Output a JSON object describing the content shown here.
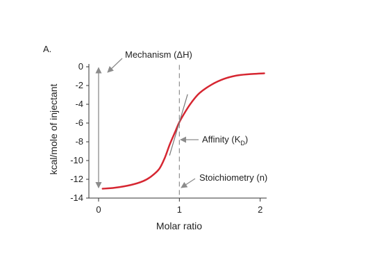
{
  "chart_data": {
    "type": "line",
    "panel_label": "A.",
    "title": "",
    "xlabel": "Molar ratio",
    "ylabel": "kcal/mole of injectant",
    "xlim": [
      -0.12,
      2.08
    ],
    "ylim": [
      -14,
      0.3
    ],
    "x_ticks": [
      0,
      1,
      2
    ],
    "y_ticks": [
      0,
      -2,
      -4,
      -6,
      -8,
      -10,
      -12,
      -14
    ],
    "grid": false,
    "legend": "none",
    "line_color": "#d62631",
    "annotation_color": "#8c8c8c",
    "series": [
      {
        "x": [
          0.05,
          0.2,
          0.4,
          0.55,
          0.65,
          0.75,
          0.82,
          0.88,
          0.95,
          1.0,
          1.08,
          1.15,
          1.25,
          1.4,
          1.55,
          1.7,
          1.85,
          2.05
        ],
        "y": [
          -13.0,
          -12.9,
          -12.6,
          -12.2,
          -11.7,
          -10.9,
          -9.7,
          -8.3,
          -6.9,
          -5.9,
          -4.7,
          -3.8,
          -2.8,
          -1.9,
          -1.3,
          -0.95,
          -0.8,
          -0.7
        ]
      }
    ],
    "annotations": {
      "mechanism": "Mechanism (ΔH)",
      "affinity": "Affinity (K",
      "affinity_sub": "D",
      "affinity_close": ")",
      "stoichiometry": "Stoichiometry (n)"
    },
    "reference_x": 1.0
  }
}
